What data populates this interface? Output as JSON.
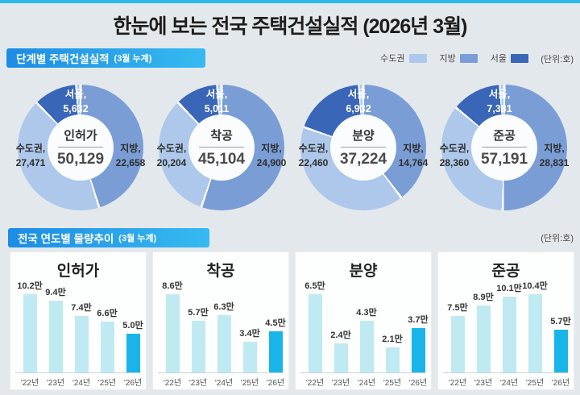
{
  "page": {
    "title": "한눈에 보는 전국 주택건설실적 (2026년 3월)"
  },
  "colors": {
    "top_strip": "#2BB7EA",
    "header_gradient_from": "#1D8CE3",
    "header_gradient_to": "#36BAF0",
    "sudogwon": "#ADC8EA",
    "jibang": "#7A9DD6",
    "seoul": "#3A66B8",
    "bar_light": "#BFEAF2",
    "bar_highlight": "#19B5E8"
  },
  "section_donuts": {
    "header": "단계별 주택건설실적",
    "header_suffix": "(3월 누계)",
    "unit": "(단위:호)",
    "legend": [
      {
        "label": "수도권",
        "color": "#ADC8EA"
      },
      {
        "label": "지방",
        "color": "#7A9DD6"
      },
      {
        "label": "서울",
        "color": "#3A66B8"
      }
    ]
  },
  "section_bars": {
    "header": "전국 연도별 물량추이",
    "header_suffix": "(3월 누계)",
    "unit": "(단위:호)"
  },
  "chart_data": [
    {
      "type": "pie",
      "title": "단계별 주택건설실적 (3월 누계)",
      "unit": "호",
      "legend": [
        "수도권",
        "지방",
        "서울"
      ],
      "charts": [
        {
          "title": "인허가",
          "total": 50129,
          "total_display": "50,129",
          "slices": [
            {
              "name": "수도권",
              "value": 27471,
              "display": "27,471"
            },
            {
              "name": "지방",
              "value": 22658,
              "display": "22,658"
            },
            {
              "name": "서울",
              "value": 5632,
              "display": "5,632"
            }
          ]
        },
        {
          "title": "착공",
          "total": 45104,
          "total_display": "45,104",
          "slices": [
            {
              "name": "수도권",
              "value": 20204,
              "display": "20,204"
            },
            {
              "name": "지방",
              "value": 24900,
              "display": "24,900"
            },
            {
              "name": "서울",
              "value": 5011,
              "display": "5,011"
            }
          ]
        },
        {
          "title": "분양",
          "total": 37224,
          "total_display": "37,224",
          "slices": [
            {
              "name": "수도권",
              "value": 22460,
              "display": "22,460"
            },
            {
              "name": "지방",
              "value": 14764,
              "display": "14,764"
            },
            {
              "name": "서울",
              "value": 6932,
              "display": "6,932"
            }
          ]
        },
        {
          "title": "준공",
          "total": 57191,
          "total_display": "57,191",
          "slices": [
            {
              "name": "수도권",
              "value": 28360,
              "display": "28,360"
            },
            {
              "name": "지방",
              "value": 28831,
              "display": "28,831"
            },
            {
              "name": "서울",
              "value": 7381,
              "display": "7,381"
            }
          ]
        }
      ]
    },
    {
      "type": "bar",
      "title": "전국 연도별 물량추이 (3월 누계)",
      "unit": "만 호",
      "categories": [
        "'22년",
        "'23년",
        "'24년",
        "'25년",
        "'26년"
      ],
      "highlight_index": 4,
      "series": [
        {
          "name": "인허가",
          "values": [
            10.2,
            9.4,
            7.4,
            6.6,
            5.0
          ],
          "labels": [
            "10.2만",
            "9.4만",
            "7.4만",
            "6.6만",
            "5.0만"
          ]
        },
        {
          "name": "착공",
          "values": [
            8.6,
            5.7,
            6.3,
            3.4,
            4.5
          ],
          "labels": [
            "8.6만",
            "5.7만",
            "6.3만",
            "3.4만",
            "4.5만"
          ]
        },
        {
          "name": "분양",
          "values": [
            6.5,
            2.4,
            4.3,
            2.1,
            3.7
          ],
          "labels": [
            "6.5만",
            "2.4만",
            "4.3만",
            "2.1만",
            "3.7만"
          ]
        },
        {
          "name": "준공",
          "values": [
            7.5,
            8.9,
            10.1,
            10.4,
            5.7
          ],
          "labels": [
            "7.5만",
            "8.9만",
            "10.1만",
            "10.4만",
            "5.7만"
          ]
        }
      ]
    }
  ]
}
